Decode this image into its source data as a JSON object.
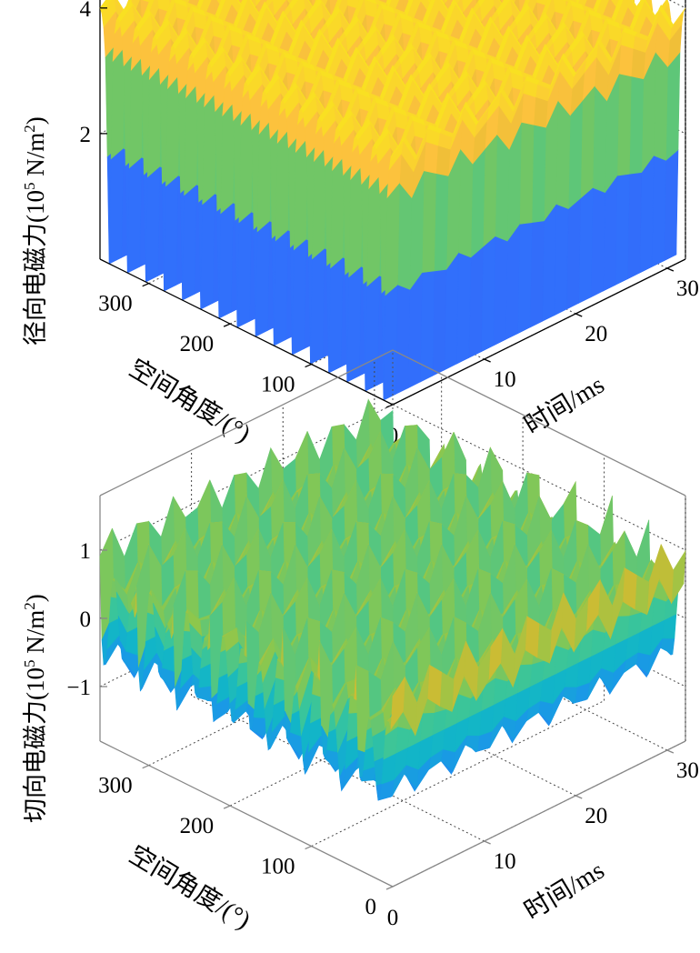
{
  "charts": [
    {
      "id": "radial",
      "type": "surface3d",
      "zlabel_prefix": "径向电磁力(10",
      "zlabel_exp": "5",
      "zlabel_mid": " N/m",
      "zlabel_sq": "2",
      "zlabel_suffix": ")",
      "xlabel": "空间角度/(°)",
      "ylabel": "时间/ms",
      "x_ticks": [
        "0",
        "100",
        "200",
        "300"
      ],
      "x_tick_values": [
        0,
        100,
        200,
        300
      ],
      "y_ticks": [
        "10",
        "20",
        "30"
      ],
      "y_tick_values": [
        10,
        20,
        30
      ],
      "z_ticks": [
        "2",
        "4"
      ],
      "z_tick_values": [
        2,
        4
      ],
      "xlim": [
        0,
        360
      ],
      "ylim": [
        0,
        32
      ],
      "zlim": [
        0,
        4.2
      ],
      "pole_count": 16,
      "peak_value": 4.0,
      "surface_description_values": {
        "max": 4.0,
        "min": 0.0
      }
    },
    {
      "id": "tangential",
      "type": "surface3d",
      "zlabel_prefix": "切向电磁力(10",
      "zlabel_exp": "5",
      "zlabel_mid": " N/m",
      "zlabel_sq": "2",
      "zlabel_suffix": ")",
      "xlabel": "空间角度/(°)",
      "ylabel": "时间/ms",
      "x_ticks": [
        "0",
        "100",
        "200",
        "300"
      ],
      "x_tick_values": [
        0,
        100,
        200,
        300
      ],
      "y_ticks": [
        "10",
        "20",
        "30"
      ],
      "y_tick_values": [
        10,
        20,
        30
      ],
      "z_ticks": [
        "-1",
        "0",
        "1"
      ],
      "z_tick_labels": [
        "−1",
        "0",
        "1"
      ],
      "z_tick_values": [
        -1,
        0,
        1
      ],
      "xlim": [
        0,
        360
      ],
      "ylim": [
        0,
        32
      ],
      "zlim": [
        -1.8,
        1.8
      ],
      "pole_count": 16,
      "peak_value": 1.6,
      "surface_description_values": {
        "max": 1.6,
        "min": -1.6
      }
    }
  ],
  "chart_data": [
    {
      "type": "surface3d",
      "title": "",
      "zlabel": "径向电磁力(10^5 N/m^2)",
      "xlabel": "空间角度/(°)",
      "ylabel": "时间/ms",
      "xlim": [
        0,
        360
      ],
      "ylim": [
        0,
        32
      ],
      "zlim": [
        0,
        4.2
      ],
      "x_ticks": [
        0,
        100,
        200,
        300
      ],
      "y_ticks": [
        10,
        20,
        30
      ],
      "z_ticks": [
        2,
        4
      ],
      "grid": true
    },
    {
      "type": "surface3d",
      "title": "",
      "zlabel": "切向电磁力(10^5 N/m^2)",
      "xlabel": "空间角度/(°)",
      "ylabel": "时间/ms",
      "xlim": [
        0,
        360
      ],
      "ylim": [
        0,
        32
      ],
      "zlim": [
        -1.8,
        1.8
      ],
      "x_ticks": [
        0,
        100,
        200,
        300
      ],
      "y_ticks": [
        10,
        20,
        30
      ],
      "z_ticks": [
        -1,
        0,
        1
      ],
      "grid": true
    }
  ],
  "colormap": [
    "#3e26a8",
    "#4748f0",
    "#2f73fc",
    "#1a97e8",
    "#12b5c8",
    "#3ac59a",
    "#8cc74d",
    "#d6ba2f",
    "#fcc23d",
    "#f9e022"
  ]
}
